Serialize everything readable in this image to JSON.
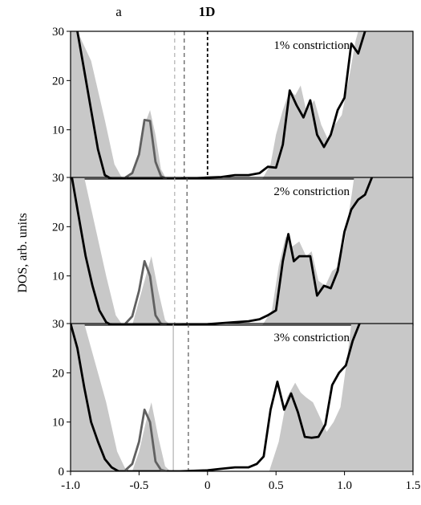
{
  "figure": {
    "letter": "a",
    "heading": "1D",
    "ylabel": "DOS, arb. units"
  },
  "chart_data": {
    "type": "line",
    "x_range": [
      -1.0,
      1.5
    ],
    "y_range": [
      0,
      30
    ],
    "x_ticks": [
      "-1.0",
      "-0.5",
      "0",
      "0.5",
      "1.0",
      "1.5"
    ],
    "y_ticks": [
      "0",
      "10",
      "20",
      "30"
    ],
    "colors": {
      "shade": "#c8c8c8",
      "band_left": "#606060",
      "band_main": "#000000",
      "line_fermi": "#000000",
      "line_mid": "#555555",
      "line_light": "#b0b0b0"
    },
    "panels": [
      {
        "annotation": "1% constriction",
        "vlines": [
          {
            "x": 0.0,
            "style": "dashed",
            "tone": "fermi"
          },
          {
            "x": -0.17,
            "style": "dashed",
            "tone": "mid"
          },
          {
            "x": -0.24,
            "style": "dashed",
            "tone": "light"
          }
        ],
        "shade": [
          [
            -1.0,
            30
          ],
          [
            -0.95,
            30
          ],
          [
            -0.85,
            24
          ],
          [
            -0.75,
            12
          ],
          [
            -0.68,
            3
          ],
          [
            -0.63,
            0.5
          ],
          [
            -0.58,
            0
          ],
          [
            -0.53,
            2
          ],
          [
            -0.5,
            6
          ],
          [
            -0.46,
            11
          ],
          [
            -0.42,
            14
          ],
          [
            -0.38,
            9
          ],
          [
            -0.34,
            2
          ],
          [
            -0.3,
            0
          ],
          [
            0.4,
            0
          ],
          [
            0.46,
            3
          ],
          [
            0.5,
            9
          ],
          [
            0.55,
            14
          ],
          [
            0.6,
            18
          ],
          [
            0.64,
            17
          ],
          [
            0.68,
            19
          ],
          [
            0.72,
            14
          ],
          [
            0.78,
            16
          ],
          [
            0.83,
            11
          ],
          [
            0.88,
            8
          ],
          [
            0.93,
            11
          ],
          [
            0.98,
            13
          ],
          [
            1.03,
            20
          ],
          [
            1.08,
            28
          ],
          [
            1.1,
            30
          ],
          [
            1.5,
            30
          ],
          [
            1.5,
            0
          ],
          [
            -1.0,
            0
          ]
        ],
        "series_left": [
          [
            -0.6,
            0.3
          ],
          [
            -0.55,
            1.2
          ],
          [
            -0.5,
            5
          ],
          [
            -0.46,
            12
          ],
          [
            -0.42,
            11.8
          ],
          [
            -0.38,
            3.5
          ],
          [
            -0.34,
            0.6
          ],
          [
            -0.3,
            0
          ]
        ],
        "series_main": [
          [
            -0.95,
            30
          ],
          [
            -0.9,
            22
          ],
          [
            -0.85,
            14
          ],
          [
            -0.8,
            6
          ],
          [
            -0.75,
            0.8
          ],
          [
            -0.7,
            0
          ],
          [
            -0.6,
            0
          ],
          [
            -0.3,
            0
          ],
          [
            -0.2,
            0
          ],
          [
            0.0,
            0.3
          ],
          [
            0.1,
            0.4
          ],
          [
            0.2,
            0.8
          ],
          [
            0.3,
            0.8
          ],
          [
            0.38,
            1.2
          ],
          [
            0.44,
            2.5
          ],
          [
            0.5,
            2.3
          ],
          [
            0.55,
            7
          ],
          [
            0.6,
            18
          ],
          [
            0.65,
            15
          ],
          [
            0.7,
            12.5
          ],
          [
            0.75,
            16
          ],
          [
            0.8,
            9
          ],
          [
            0.85,
            6.5
          ],
          [
            0.9,
            9
          ],
          [
            0.95,
            14
          ],
          [
            1.0,
            16.5
          ],
          [
            1.05,
            27.5
          ],
          [
            1.1,
            25.5
          ],
          [
            1.15,
            30
          ]
        ]
      },
      {
        "annotation": "2% constriction",
        "vlines": [
          {
            "x": -0.15,
            "style": "dashed",
            "tone": "mid"
          },
          {
            "x": -0.24,
            "style": "dashed",
            "tone": "light"
          }
        ],
        "shade": [
          [
            -1.0,
            30
          ],
          [
            -0.9,
            30
          ],
          [
            -0.82,
            20
          ],
          [
            -0.74,
            10
          ],
          [
            -0.67,
            2
          ],
          [
            -0.62,
            0
          ],
          [
            -0.55,
            0
          ],
          [
            -0.5,
            5
          ],
          [
            -0.45,
            10
          ],
          [
            -0.41,
            14
          ],
          [
            -0.36,
            7
          ],
          [
            -0.31,
            1
          ],
          [
            -0.27,
            0
          ],
          [
            0.4,
            0
          ],
          [
            0.47,
            3
          ],
          [
            0.52,
            12
          ],
          [
            0.57,
            18
          ],
          [
            0.62,
            16
          ],
          [
            0.67,
            17
          ],
          [
            0.72,
            14
          ],
          [
            0.76,
            15
          ],
          [
            0.81,
            9
          ],
          [
            0.86,
            8
          ],
          [
            0.91,
            11
          ],
          [
            0.96,
            12
          ],
          [
            1.0,
            17
          ],
          [
            1.05,
            26
          ],
          [
            1.07,
            30
          ],
          [
            1.5,
            30
          ],
          [
            1.5,
            0
          ],
          [
            -1.0,
            0
          ]
        ],
        "series_left": [
          [
            -0.6,
            0.3
          ],
          [
            -0.55,
            1.8
          ],
          [
            -0.5,
            7
          ],
          [
            -0.46,
            13
          ],
          [
            -0.42,
            10
          ],
          [
            -0.38,
            2
          ],
          [
            -0.34,
            0.3
          ],
          [
            -0.3,
            0
          ]
        ],
        "series_main": [
          [
            -0.99,
            30
          ],
          [
            -0.94,
            22
          ],
          [
            -0.89,
            14
          ],
          [
            -0.84,
            8
          ],
          [
            -0.79,
            3
          ],
          [
            -0.74,
            0.6
          ],
          [
            -0.7,
            0
          ],
          [
            -0.6,
            0
          ],
          [
            -0.3,
            0
          ],
          [
            -0.2,
            0
          ],
          [
            0.0,
            0.2
          ],
          [
            0.1,
            0.4
          ],
          [
            0.2,
            0.6
          ],
          [
            0.3,
            0.8
          ],
          [
            0.38,
            1.2
          ],
          [
            0.44,
            2
          ],
          [
            0.5,
            3
          ],
          [
            0.55,
            13
          ],
          [
            0.59,
            18.5
          ],
          [
            0.63,
            13
          ],
          [
            0.67,
            14
          ],
          [
            0.71,
            14
          ],
          [
            0.75,
            14
          ],
          [
            0.8,
            6
          ],
          [
            0.85,
            8
          ],
          [
            0.9,
            7.5
          ],
          [
            0.95,
            11
          ],
          [
            1.0,
            19
          ],
          [
            1.05,
            23.5
          ],
          [
            1.1,
            25.5
          ],
          [
            1.15,
            26.5
          ],
          [
            1.2,
            30
          ]
        ]
      },
      {
        "annotation": "3% constriction",
        "vlines": [
          {
            "x": -0.14,
            "style": "dashed",
            "tone": "mid"
          },
          {
            "x": -0.25,
            "style": "solid",
            "tone": "light"
          }
        ],
        "shade": [
          [
            -1.0,
            30
          ],
          [
            -0.9,
            30
          ],
          [
            -0.83,
            23
          ],
          [
            -0.74,
            14
          ],
          [
            -0.66,
            4
          ],
          [
            -0.6,
            0.5
          ],
          [
            -0.55,
            0
          ],
          [
            -0.5,
            4
          ],
          [
            -0.45,
            10
          ],
          [
            -0.41,
            14
          ],
          [
            -0.36,
            7
          ],
          [
            -0.31,
            1
          ],
          [
            -0.27,
            0
          ],
          [
            0.45,
            0
          ],
          [
            0.52,
            6
          ],
          [
            0.58,
            15
          ],
          [
            0.64,
            18
          ],
          [
            0.68,
            16
          ],
          [
            0.72,
            15
          ],
          [
            0.77,
            14
          ],
          [
            0.82,
            11
          ],
          [
            0.87,
            8
          ],
          [
            0.92,
            10
          ],
          [
            0.97,
            13
          ],
          [
            1.02,
            23
          ],
          [
            1.05,
            30
          ],
          [
            1.5,
            30
          ],
          [
            1.5,
            0
          ],
          [
            -1.0,
            0
          ]
        ],
        "series_left": [
          [
            -0.6,
            0.2
          ],
          [
            -0.55,
            1.5
          ],
          [
            -0.5,
            6
          ],
          [
            -0.46,
            12.5
          ],
          [
            -0.42,
            10
          ],
          [
            -0.38,
            2
          ],
          [
            -0.34,
            0.3
          ],
          [
            -0.3,
            0
          ]
        ],
        "series_main": [
          [
            -1.0,
            30
          ],
          [
            -0.95,
            25
          ],
          [
            -0.9,
            17
          ],
          [
            -0.85,
            10
          ],
          [
            -0.8,
            6
          ],
          [
            -0.75,
            2.5
          ],
          [
            -0.7,
            0.8
          ],
          [
            -0.65,
            0
          ],
          [
            -0.6,
            0
          ],
          [
            -0.3,
            0
          ],
          [
            -0.2,
            0
          ],
          [
            0.0,
            0.2
          ],
          [
            0.1,
            0.5
          ],
          [
            0.2,
            0.8
          ],
          [
            0.3,
            0.8
          ],
          [
            0.36,
            1.5
          ],
          [
            0.41,
            3
          ],
          [
            0.46,
            12.5
          ],
          [
            0.51,
            18.2
          ],
          [
            0.56,
            12.5
          ],
          [
            0.61,
            15.8
          ],
          [
            0.66,
            12
          ],
          [
            0.71,
            7
          ],
          [
            0.76,
            6.8
          ],
          [
            0.81,
            7
          ],
          [
            0.86,
            9.5
          ],
          [
            0.91,
            17.5
          ],
          [
            0.96,
            20
          ],
          [
            1.01,
            21.5
          ],
          [
            1.06,
            26.5
          ],
          [
            1.11,
            30
          ]
        ]
      }
    ]
  }
}
